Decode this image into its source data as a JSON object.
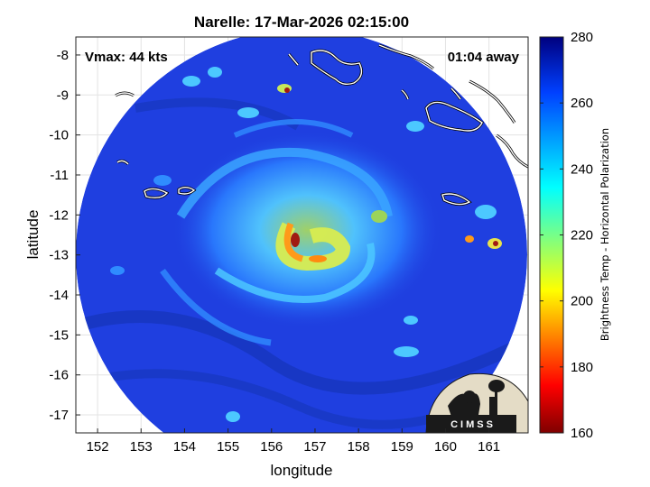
{
  "title": "Narelle: 17-Mar-2026 02:15:00",
  "annotations": {
    "vmax": "Vmax: 44 kts",
    "time_away": "01:04 away"
  },
  "axes": {
    "xlabel": "longitude",
    "ylabel": "latitude",
    "xlim": [
      151.5,
      161.9
    ],
    "ylim": [
      -17.45,
      -7.55
    ],
    "xticks": [
      "152",
      "153",
      "154",
      "155",
      "156",
      "157",
      "158",
      "159",
      "160",
      "161"
    ],
    "yticks": [
      "-8",
      "-9",
      "-10",
      "-11",
      "-12",
      "-13",
      "-14",
      "-15",
      "-16",
      "-17"
    ],
    "grid": true
  },
  "colorbar": {
    "label": "Brightness Temp - Horizontal Polarization",
    "range": [
      160,
      280
    ],
    "ticks": [
      "160",
      "180",
      "200",
      "220",
      "240",
      "260",
      "280"
    ],
    "colormap": "jet"
  },
  "logo": {
    "text": "CIMSS"
  },
  "colors": {
    "background": "#1f3fe0",
    "ocean_dark": "#1535b8",
    "storm_mid": "#45b8ff",
    "storm_core": "#c8e85a",
    "storm_hot": "#ff9a1a",
    "storm_max": "#a11a12",
    "logo_bg": "#e4dcc6"
  },
  "map": {
    "swath_center": [
      156.85,
      -12.5
    ],
    "swath_radius_deg": 5.0,
    "eye": [
      156.6,
      -12.9
    ]
  }
}
